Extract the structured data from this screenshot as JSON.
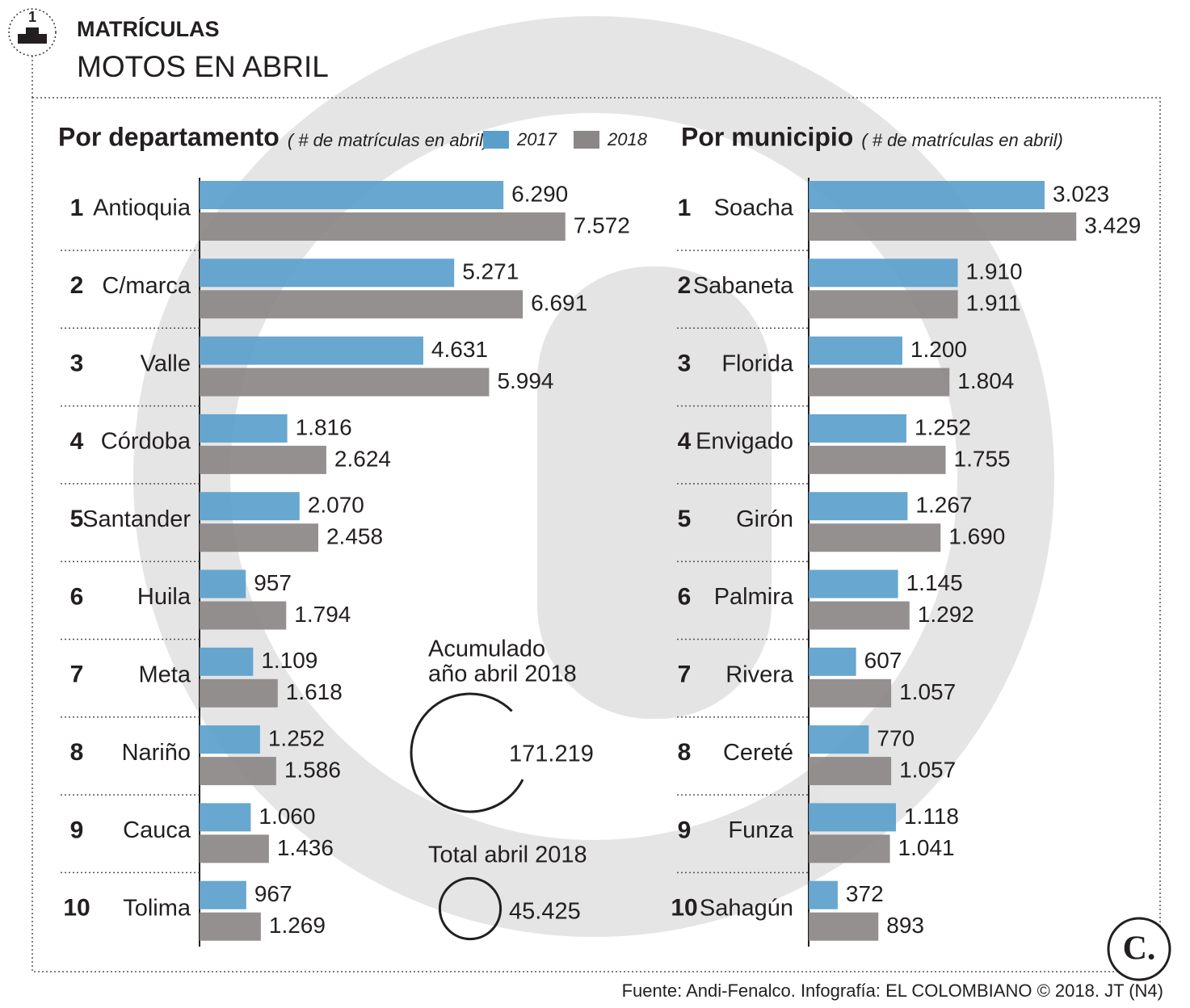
{
  "header": {
    "badge": "1",
    "kicker": "MATRÍCULAS",
    "title": "MOTOS EN ABRIL"
  },
  "chart_data": [
    {
      "type": "bar",
      "orientation": "horizontal",
      "title": "Por departamento",
      "subtitle": "( # de matrículas en abril)",
      "legend": true,
      "ranks": [
        1,
        2,
        3,
        4,
        5,
        6,
        7,
        8,
        9,
        10
      ],
      "categories": [
        "Antioquia",
        "C/marca",
        "Valle",
        "Córdoba",
        "Santander",
        "Huila",
        "Meta",
        "Nariño",
        "Cauca",
        "Tolima"
      ],
      "series": [
        {
          "name": "2017",
          "color": "#5a9fcc",
          "values": [
            6290,
            5271,
            4631,
            1816,
            2070,
            957,
            1109,
            1252,
            1060,
            967
          ],
          "value_labels": [
            "6.290",
            "5.271",
            "4.631",
            "1.816",
            "2.070",
            "957",
            "1.109",
            "1.252",
            "1.060",
            "967"
          ]
        },
        {
          "name": "2018",
          "color": "#8c8787",
          "values": [
            7572,
            6691,
            5994,
            2624,
            2458,
            1794,
            1618,
            1586,
            1436,
            1269
          ],
          "value_labels": [
            "7.572",
            "6.691",
            "5.994",
            "2.624",
            "2.458",
            "1.794",
            "1.618",
            "1.586",
            "1.436",
            "1.269"
          ]
        }
      ]
    },
    {
      "type": "bar",
      "orientation": "horizontal",
      "title": "Por municipio",
      "subtitle": "( # de matrículas en abril)",
      "legend": false,
      "ranks": [
        1,
        2,
        3,
        4,
        5,
        6,
        7,
        8,
        9,
        10
      ],
      "categories": [
        "Soacha",
        "Sabaneta",
        "Florida",
        "Envigado",
        "Girón",
        "Palmira",
        "Rivera",
        "Cereté",
        "Funza",
        "Sahagún"
      ],
      "series": [
        {
          "color": "#5a9fcc",
          "values": [
            3023,
            1910,
            1200,
            1252,
            1267,
            1145,
            607,
            770,
            1118,
            372
          ],
          "value_labels": [
            "3.023",
            "1.910",
            "1.200",
            "1.252",
            "1.267",
            "1.145",
            "607",
            "770",
            "1.118",
            "372"
          ]
        },
        {
          "color": "#8c8787",
          "values": [
            3429,
            1911,
            1804,
            1755,
            1690,
            1292,
            1057,
            1057,
            1041,
            893
          ],
          "value_labels": [
            "3.429",
            "1.911",
            "1.804",
            "1.755",
            "1.690",
            "1.292",
            "1.057",
            "1.057",
            "1.041",
            "893"
          ]
        }
      ]
    }
  ],
  "totals": [
    {
      "label": [
        "Acumulado",
        "año abril 2018"
      ],
      "value": 171219,
      "value_label": "171.219"
    },
    {
      "label": [
        "Total abril 2018"
      ],
      "value": 45425,
      "value_label": "45.425"
    }
  ],
  "logo": "C.",
  "source": "Fuente: Andi-Fenalco. Infografía: EL COLOMBIANO © 2018. JT (N4)"
}
